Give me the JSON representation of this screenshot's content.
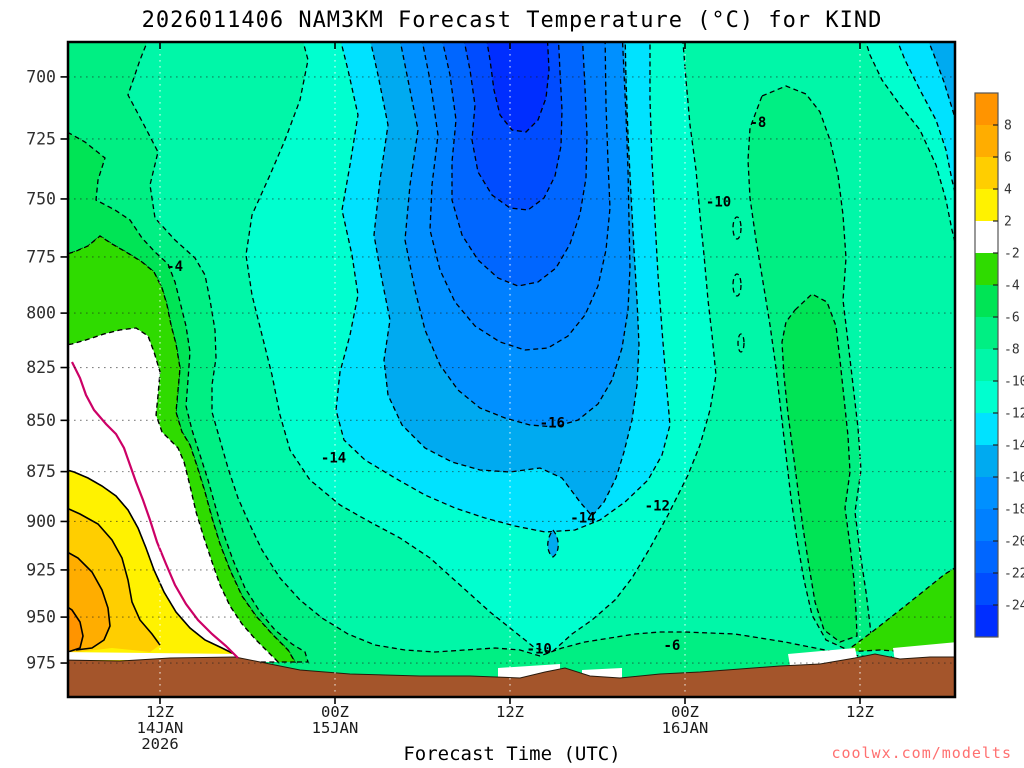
{
  "header": {
    "title": "2026011406 NAM3KM Forecast Temperature (°C) for KIND"
  },
  "footer": {
    "watermark": "coolwx.com/modelts",
    "watermark_color": "#ff7070"
  },
  "chart_data": {
    "type": "heatmap",
    "variant": "filled-contour time-height cross-section (pressure vs forecast time)",
    "title": "2026011406 NAM3KM Forecast Temperature (°C) for KIND",
    "xlabel": "Forecast Time (UTC)",
    "y_ticks": [
      700,
      725,
      750,
      775,
      800,
      825,
      850,
      875,
      900,
      925,
      950,
      975
    ],
    "y_axis_orientation": "pressure hPa, 700 at top, log-spaced, increasing downward",
    "x_ticks": [
      {
        "lines": [
          "12Z",
          "14JAN",
          "2026"
        ]
      },
      {
        "lines": [
          "00Z",
          "15JAN"
        ]
      },
      {
        "lines": [
          "12Z"
        ]
      },
      {
        "lines": [
          "00Z",
          "16JAN"
        ]
      },
      {
        "lines": [
          "12Z"
        ]
      }
    ],
    "x_tick_interval_hours": 12,
    "colorbar": {
      "unit": "°C",
      "boundary_labels": [
        8,
        6,
        4,
        2,
        -2,
        -4,
        -6,
        -8,
        -10,
        -12,
        -14,
        -16,
        -18,
        -20,
        -22,
        -24
      ],
      "segment_colors": [
        "#FF9400",
        "#FFAD00",
        "#FFCE00",
        "#FFF200",
        "#FFFFFF",
        "#2FDB00",
        "#00E455",
        "#00EF83",
        "#00F7A8",
        "#00FFCF",
        "#00E2FF",
        "#00AAF0",
        "#0090FF",
        "#0080FF",
        "#0066FF",
        "#004CFF",
        "#002EFF"
      ]
    },
    "contour_interval_c": 2,
    "contour_labels": [
      {
        "value": -4,
        "hours_after_init": 7.0,
        "pressure_hpa": 779
      },
      {
        "value": -8,
        "hours_after_init": 47.0,
        "pressure_hpa": 718
      },
      {
        "value": -10,
        "hours_after_init": 44.3,
        "pressure_hpa": 751
      },
      {
        "value": -16,
        "hours_after_init": 32.9,
        "pressure_hpa": 851
      },
      {
        "value": -14,
        "hours_after_init": 17.9,
        "pressure_hpa": 868
      },
      {
        "value": -14,
        "hours_after_init": 35.0,
        "pressure_hpa": 898
      },
      {
        "value": -12,
        "hours_after_init": 40.1,
        "pressure_hpa": 892
      },
      {
        "value": -10,
        "hours_after_init": 32.0,
        "pressure_hpa": 967
      },
      {
        "value": -6,
        "hours_after_init": 41.1,
        "pressure_hpa": 965
      }
    ],
    "zero_isotherm": {
      "color": "#CC0066",
      "description": "0°C line: left edge ~830 hPa at init, descends to terrain by ~18Z 14JAN"
    },
    "terrain_color": "#A4552B",
    "notes": [
      "cold core < -24°C aloft near 700 hPa centered ~12Z 15JAN",
      "surface-based warm layer > 8°C below ~950 hPa at forecast start (lower-left)",
      "negative contours dashed, positive contours solid, 0°C line magenta",
      "brown strip along bottom = terrain / below-ground mask"
    ]
  }
}
